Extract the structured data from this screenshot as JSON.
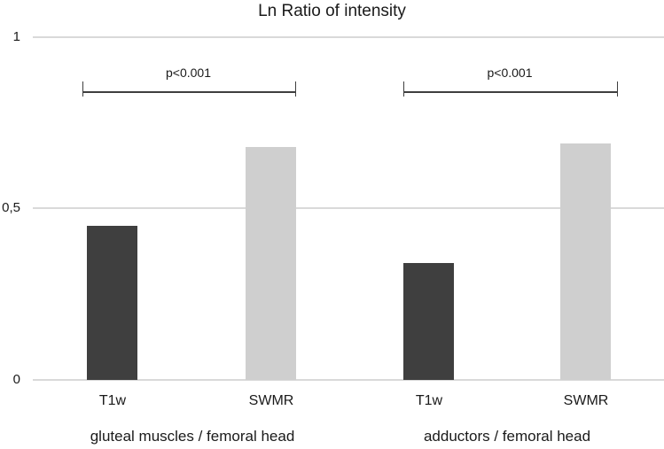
{
  "chart_data": {
    "type": "bar",
    "title": "Ln Ratio of intensity",
    "categories": [
      "gluteal muscles / femoral head",
      "adductors / femoral head"
    ],
    "series": [
      {
        "name": "T1w",
        "values": [
          0.45,
          0.34
        ],
        "color": "#3f3f3f"
      },
      {
        "name": "SWMR",
        "values": [
          0.68,
          0.69
        ],
        "color": "#cfcfcf"
      }
    ],
    "annotations": [
      {
        "text": "p<0.001",
        "group": 0
      },
      {
        "text": "p<0.001",
        "group": 1
      }
    ],
    "ylim": [
      0,
      1
    ],
    "yticks": [
      {
        "value": 0,
        "label": "0"
      },
      {
        "value": 0.5,
        "label": "0,5"
      },
      {
        "value": 1,
        "label": "1"
      }
    ],
    "grid": true,
    "legend": false,
    "colors": {
      "t1w_bar": "#3f3f3f",
      "swmr_bar": "#cfcfcf",
      "gridline": "#d9d9d9",
      "bracket": "#3f3f3f",
      "text": "#1a1a1a",
      "background": "#ffffff"
    }
  }
}
